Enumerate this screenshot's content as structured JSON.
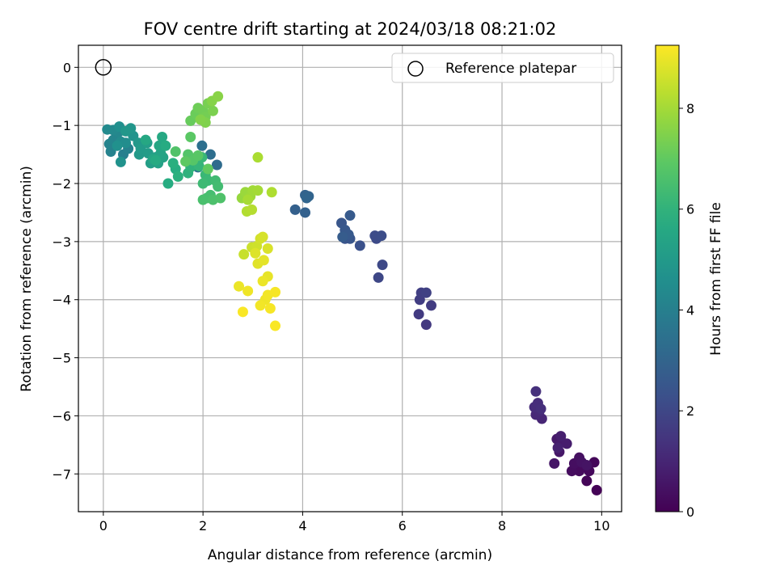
{
  "chart_data": {
    "type": "scatter",
    "title": "FOV centre drift starting at 2024/03/18 08:21:02",
    "xlabel": "Angular distance from reference (arcmin)",
    "ylabel": "Rotation from reference (arcmin)",
    "xlim": [
      -0.5,
      10.4
    ],
    "ylim": [
      -7.65,
      0.38
    ],
    "xticks": [
      0,
      2,
      4,
      6,
      8,
      10
    ],
    "yticks": [
      0,
      -1,
      -2,
      -3,
      -4,
      -5,
      -6,
      -7
    ],
    "grid": true,
    "legend": {
      "label": "Reference platepar",
      "location": "upper right"
    },
    "reference_point": {
      "x": 0,
      "y": 0
    },
    "colorbar": {
      "label": "Hours from first FF file",
      "min": 0,
      "max": 9.25,
      "ticks": [
        0,
        2,
        4,
        6,
        8
      ],
      "colormap": "viridis"
    },
    "points": [
      {
        "x": 9.9,
        "y": -7.28,
        "c": 0.05
      },
      {
        "x": 9.7,
        "y": -7.12,
        "c": 0.1
      },
      {
        "x": 9.85,
        "y": -6.8,
        "c": 0.15
      },
      {
        "x": 9.75,
        "y": -6.95,
        "c": 0.2
      },
      {
        "x": 9.55,
        "y": -6.95,
        "c": 0.25
      },
      {
        "x": 9.4,
        "y": -6.95,
        "c": 0.3
      },
      {
        "x": 9.45,
        "y": -6.82,
        "c": 0.35
      },
      {
        "x": 9.55,
        "y": -6.72,
        "c": 0.4
      },
      {
        "x": 9.6,
        "y": -6.8,
        "c": 0.45
      },
      {
        "x": 9.7,
        "y": -6.85,
        "c": 0.5
      },
      {
        "x": 9.05,
        "y": -6.82,
        "c": 0.55
      },
      {
        "x": 9.15,
        "y": -6.62,
        "c": 0.6
      },
      {
        "x": 9.1,
        "y": -6.4,
        "c": 0.65
      },
      {
        "x": 9.2,
        "y": -6.45,
        "c": 0.7
      },
      {
        "x": 9.3,
        "y": -6.48,
        "c": 0.75
      },
      {
        "x": 9.18,
        "y": -6.35,
        "c": 0.8
      },
      {
        "x": 9.12,
        "y": -6.55,
        "c": 0.85
      },
      {
        "x": 8.8,
        "y": -6.05,
        "c": 1.0
      },
      {
        "x": 8.68,
        "y": -5.98,
        "c": 1.05
      },
      {
        "x": 8.75,
        "y": -5.92,
        "c": 1.1
      },
      {
        "x": 8.65,
        "y": -5.85,
        "c": 1.15
      },
      {
        "x": 8.72,
        "y": -5.78,
        "c": 1.2
      },
      {
        "x": 8.78,
        "y": -5.88,
        "c": 1.25
      },
      {
        "x": 8.68,
        "y": -5.58,
        "c": 1.3
      },
      {
        "x": 6.48,
        "y": -4.43,
        "c": 1.55
      },
      {
        "x": 6.33,
        "y": -4.25,
        "c": 1.6
      },
      {
        "x": 6.58,
        "y": -4.1,
        "c": 1.65
      },
      {
        "x": 6.35,
        "y": -4.0,
        "c": 1.7
      },
      {
        "x": 6.38,
        "y": -3.88,
        "c": 1.75
      },
      {
        "x": 6.48,
        "y": -3.88,
        "c": 1.8
      },
      {
        "x": 5.52,
        "y": -3.62,
        "c": 2.0
      },
      {
        "x": 5.6,
        "y": -3.4,
        "c": 2.05
      },
      {
        "x": 5.48,
        "y": -2.95,
        "c": 2.1
      },
      {
        "x": 5.45,
        "y": -2.9,
        "c": 2.15
      },
      {
        "x": 5.58,
        "y": -2.9,
        "c": 2.2
      },
      {
        "x": 5.15,
        "y": -3.07,
        "c": 2.3
      },
      {
        "x": 4.85,
        "y": -2.95,
        "c": 2.4
      },
      {
        "x": 4.95,
        "y": -2.95,
        "c": 2.45
      },
      {
        "x": 4.78,
        "y": -2.68,
        "c": 2.5
      },
      {
        "x": 4.85,
        "y": -2.8,
        "c": 2.55
      },
      {
        "x": 4.92,
        "y": -2.88,
        "c": 2.6
      },
      {
        "x": 4.95,
        "y": -2.55,
        "c": 2.65
      },
      {
        "x": 4.8,
        "y": -2.92,
        "c": 2.7
      },
      {
        "x": 3.85,
        "y": -2.45,
        "c": 2.85
      },
      {
        "x": 4.05,
        "y": -2.5,
        "c": 2.9
      },
      {
        "x": 4.05,
        "y": -2.2,
        "c": 2.95
      },
      {
        "x": 4.12,
        "y": -2.22,
        "c": 3.0
      },
      {
        "x": 4.08,
        "y": -2.25,
        "c": 3.05
      },
      {
        "x": 2.28,
        "y": -1.68,
        "c": 3.25
      },
      {
        "x": 2.15,
        "y": -1.5,
        "c": 3.35
      },
      {
        "x": 1.98,
        "y": -1.35,
        "c": 3.4
      },
      {
        "x": 1.9,
        "y": -1.72,
        "c": 3.5
      },
      {
        "x": 0.4,
        "y": -1.5,
        "c": 4.0
      },
      {
        "x": 0.5,
        "y": -1.4,
        "c": 4.05
      },
      {
        "x": 0.15,
        "y": -1.45,
        "c": 4.1
      },
      {
        "x": 0.12,
        "y": -1.32,
        "c": 4.15
      },
      {
        "x": 0.2,
        "y": -1.25,
        "c": 4.2
      },
      {
        "x": 0.3,
        "y": -1.12,
        "c": 4.3
      },
      {
        "x": 0.2,
        "y": -1.08,
        "c": 4.35
      },
      {
        "x": 0.08,
        "y": -1.07,
        "c": 4.4
      },
      {
        "x": 0.35,
        "y": -1.28,
        "c": 4.45
      },
      {
        "x": 0.45,
        "y": -1.3,
        "c": 4.5
      },
      {
        "x": 0.32,
        "y": -1.02,
        "c": 4.6
      },
      {
        "x": 0.28,
        "y": -1.35,
        "c": 4.65
      },
      {
        "x": 0.35,
        "y": -1.63,
        "c": 4.7
      },
      {
        "x": 0.6,
        "y": -1.18,
        "c": 4.75
      },
      {
        "x": 0.55,
        "y": -1.05,
        "c": 4.85
      },
      {
        "x": 0.45,
        "y": -1.1,
        "c": 4.9
      },
      {
        "x": 0.7,
        "y": -1.3,
        "c": 4.95
      },
      {
        "x": 0.72,
        "y": -1.5,
        "c": 5.0
      },
      {
        "x": 0.75,
        "y": -1.4,
        "c": 5.05
      },
      {
        "x": 0.9,
        "y": -1.48,
        "c": 5.1
      },
      {
        "x": 0.88,
        "y": -1.3,
        "c": 5.15
      },
      {
        "x": 0.95,
        "y": -1.65,
        "c": 5.2
      },
      {
        "x": 1.05,
        "y": -1.55,
        "c": 5.25
      },
      {
        "x": 1.1,
        "y": -1.65,
        "c": 5.3
      },
      {
        "x": 1.2,
        "y": -1.55,
        "c": 5.35
      },
      {
        "x": 1.15,
        "y": -1.48,
        "c": 5.4
      },
      {
        "x": 1.0,
        "y": -1.58,
        "c": 5.45
      },
      {
        "x": 1.12,
        "y": -1.35,
        "c": 5.5
      },
      {
        "x": 0.85,
        "y": -1.25,
        "c": 5.55
      },
      {
        "x": 1.18,
        "y": -1.2,
        "c": 5.6
      },
      {
        "x": 1.05,
        "y": -1.6,
        "c": 5.65
      },
      {
        "x": 1.25,
        "y": -1.35,
        "c": 5.7
      },
      {
        "x": 1.3,
        "y": -2.0,
        "c": 5.75
      },
      {
        "x": 1.45,
        "y": -1.75,
        "c": 5.8
      },
      {
        "x": 1.4,
        "y": -1.65,
        "c": 5.85
      },
      {
        "x": 1.5,
        "y": -1.88,
        "c": 5.9
      },
      {
        "x": 1.7,
        "y": -1.82,
        "c": 5.95
      },
      {
        "x": 1.75,
        "y": -1.72,
        "c": 6.0
      },
      {
        "x": 1.85,
        "y": -1.62,
        "c": 6.05
      },
      {
        "x": 1.92,
        "y": -1.7,
        "c": 6.1
      },
      {
        "x": 1.98,
        "y": -1.55,
        "c": 6.15
      },
      {
        "x": 2.05,
        "y": -1.85,
        "c": 6.2
      },
      {
        "x": 2.1,
        "y": -1.95,
        "c": 6.25
      },
      {
        "x": 2.0,
        "y": -2.0,
        "c": 6.3
      },
      {
        "x": 2.25,
        "y": -1.95,
        "c": 6.35
      },
      {
        "x": 2.3,
        "y": -2.05,
        "c": 6.4
      },
      {
        "x": 2.15,
        "y": -2.2,
        "c": 6.45
      },
      {
        "x": 2.08,
        "y": -2.25,
        "c": 6.5
      },
      {
        "x": 2.0,
        "y": -2.28,
        "c": 6.55
      },
      {
        "x": 2.2,
        "y": -2.28,
        "c": 6.6
      },
      {
        "x": 2.35,
        "y": -2.25,
        "c": 6.65
      },
      {
        "x": 1.45,
        "y": -1.45,
        "c": 6.7
      },
      {
        "x": 1.7,
        "y": -1.5,
        "c": 6.75
      },
      {
        "x": 1.8,
        "y": -1.6,
        "c": 6.8
      },
      {
        "x": 1.9,
        "y": -1.52,
        "c": 6.85
      },
      {
        "x": 1.75,
        "y": -1.2,
        "c": 6.9
      },
      {
        "x": 1.65,
        "y": -1.62,
        "c": 6.95
      },
      {
        "x": 2.1,
        "y": -1.75,
        "c": 7.0
      },
      {
        "x": 1.75,
        "y": -0.92,
        "c": 7.1
      },
      {
        "x": 1.85,
        "y": -0.8,
        "c": 7.15
      },
      {
        "x": 1.9,
        "y": -0.7,
        "c": 7.2
      },
      {
        "x": 2.0,
        "y": -0.75,
        "c": 7.25
      },
      {
        "x": 2.05,
        "y": -0.85,
        "c": 7.3
      },
      {
        "x": 2.1,
        "y": -0.62,
        "c": 7.35
      },
      {
        "x": 2.2,
        "y": -0.75,
        "c": 7.4
      },
      {
        "x": 2.05,
        "y": -0.95,
        "c": 7.45
      },
      {
        "x": 1.95,
        "y": -0.9,
        "c": 7.5
      },
      {
        "x": 2.18,
        "y": -0.58,
        "c": 7.55
      },
      {
        "x": 2.3,
        "y": -0.5,
        "c": 7.6
      },
      {
        "x": 2.78,
        "y": -2.25,
        "c": 7.8
      },
      {
        "x": 2.85,
        "y": -2.15,
        "c": 7.85
      },
      {
        "x": 2.95,
        "y": -2.22,
        "c": 7.9
      },
      {
        "x": 3.0,
        "y": -2.12,
        "c": 7.95
      },
      {
        "x": 3.1,
        "y": -2.12,
        "c": 8.0
      },
      {
        "x": 2.9,
        "y": -2.28,
        "c": 8.05
      },
      {
        "x": 3.1,
        "y": -1.55,
        "c": 8.1
      },
      {
        "x": 3.38,
        "y": -2.15,
        "c": 8.15
      },
      {
        "x": 2.88,
        "y": -2.48,
        "c": 8.2
      },
      {
        "x": 2.98,
        "y": -2.45,
        "c": 8.25
      },
      {
        "x": 2.82,
        "y": -3.22,
        "c": 8.5
      },
      {
        "x": 2.98,
        "y": -3.1,
        "c": 8.55
      },
      {
        "x": 3.08,
        "y": -3.08,
        "c": 8.6
      },
      {
        "x": 3.15,
        "y": -2.95,
        "c": 8.65
      },
      {
        "x": 3.2,
        "y": -2.92,
        "c": 8.7
      },
      {
        "x": 3.3,
        "y": -3.12,
        "c": 8.75
      },
      {
        "x": 3.05,
        "y": -3.2,
        "c": 8.8
      },
      {
        "x": 3.1,
        "y": -3.38,
        "c": 8.85
      },
      {
        "x": 3.22,
        "y": -3.32,
        "c": 8.9
      },
      {
        "x": 3.3,
        "y": -3.6,
        "c": 8.95
      },
      {
        "x": 3.2,
        "y": -3.68,
        "c": 9.0
      },
      {
        "x": 2.72,
        "y": -3.77,
        "c": 9.0
      },
      {
        "x": 2.9,
        "y": -3.85,
        "c": 9.05
      },
      {
        "x": 3.25,
        "y": -4.0,
        "c": 9.05
      },
      {
        "x": 3.3,
        "y": -3.92,
        "c": 9.1
      },
      {
        "x": 3.15,
        "y": -4.1,
        "c": 9.1
      },
      {
        "x": 3.35,
        "y": -4.15,
        "c": 9.15
      },
      {
        "x": 3.45,
        "y": -3.87,
        "c": 9.15
      },
      {
        "x": 2.8,
        "y": -4.21,
        "c": 9.2
      },
      {
        "x": 3.45,
        "y": -4.45,
        "c": 9.2
      }
    ]
  }
}
